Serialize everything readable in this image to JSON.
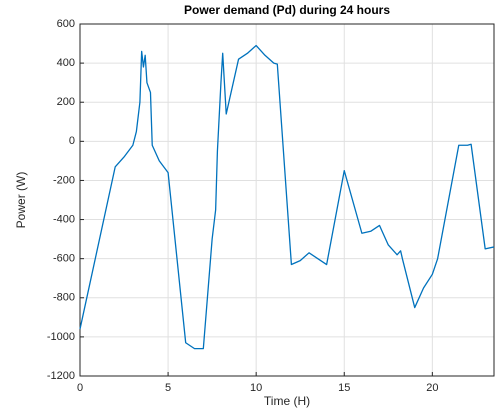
{
  "chart_data": {
    "type": "line",
    "title": "Power demand (Pd) during 24 hours",
    "xlabel": "Time (H)",
    "ylabel": "Power (W)",
    "xlim": [
      0,
      23.5
    ],
    "xticks": [
      0,
      5,
      10,
      15,
      20
    ],
    "ylim": [
      -1200,
      600
    ],
    "yticks": [
      -1200,
      -1000,
      -800,
      -600,
      -400,
      -200,
      0,
      200,
      400,
      600
    ],
    "grid": true,
    "series": [
      {
        "name": "Pd",
        "color": "#0072bd",
        "x": [
          0,
          2,
          2.5,
          3,
          3.2,
          3.4,
          3.5,
          3.6,
          3.7,
          3.8,
          4,
          4.1,
          4.5,
          5,
          6,
          6.5,
          7,
          7.5,
          7.7,
          7.8,
          8,
          8.1,
          8.3,
          9,
          9.5,
          10,
          10.5,
          11,
          11.2,
          12,
          12.5,
          13,
          13.5,
          14,
          15,
          16,
          16.5,
          17,
          17.5,
          18,
          18.2,
          18.3,
          19,
          19.5,
          20,
          20.3,
          21.5,
          22,
          22.2,
          23,
          23.5
        ],
        "values": [
          -960,
          -130,
          -80,
          -20,
          50,
          200,
          460,
          380,
          440,
          300,
          250,
          -20,
          -100,
          -160,
          -1030,
          -1060,
          -1060,
          -500,
          -350,
          -50,
          300,
          450,
          140,
          420,
          450,
          490,
          440,
          400,
          395,
          -630,
          -610,
          -570,
          -600,
          -630,
          -150,
          -470,
          -460,
          -430,
          -530,
          -580,
          -560,
          -600,
          -850,
          -750,
          -680,
          -600,
          -20,
          -20,
          -15,
          -550,
          -540
        ]
      }
    ]
  }
}
